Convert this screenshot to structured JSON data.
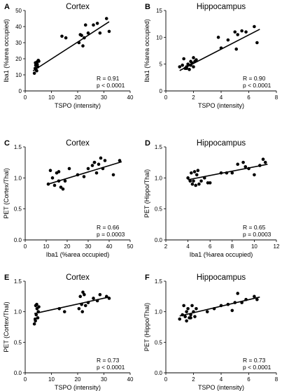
{
  "chart_data": [
    {
      "panel": "A",
      "type": "scatter",
      "title": "Cortex",
      "xlabel": "TSPO (intensity)",
      "ylabel": "Iba1 (%area occupied)",
      "xlim": [
        0,
        40
      ],
      "ylim": [
        0,
        50
      ],
      "xticks": [
        0,
        10,
        20,
        30,
        40
      ],
      "yticks": [
        0,
        10,
        20,
        30,
        40,
        50
      ],
      "stat_r": "R = 0.91",
      "stat_p": "p < 0.0001",
      "fit": [
        [
          3,
          12.5
        ],
        [
          32,
          43
        ]
      ],
      "x": [
        3.5,
        3.8,
        4.0,
        4.2,
        4.5,
        4.8,
        5.0,
        3.9,
        4.4,
        4.6,
        5.2,
        14.0,
        15.5,
        20.5,
        21.0,
        21.5,
        22.0,
        22.5,
        23.0,
        24.0,
        26.0,
        27.5,
        28.5,
        31.0,
        32.0
      ],
      "y": [
        11.0,
        14.0,
        16.0,
        13.0,
        18.0,
        15.0,
        19.0,
        17.5,
        12.5,
        16.5,
        18.5,
        34.0,
        33.0,
        30.0,
        35.0,
        34.5,
        28.0,
        33.0,
        41.0,
        36.0,
        41.0,
        42.0,
        36.0,
        45.0,
        37.0
      ]
    },
    {
      "panel": "B",
      "type": "scatter",
      "title": "Hippocampus",
      "xlabel": "TSPO (intensity)",
      "ylabel": "Iba1 (%area occupied)",
      "xlim": [
        0,
        8
      ],
      "ylim": [
        0,
        15
      ],
      "xticks": [
        0,
        2,
        4,
        6,
        8
      ],
      "yticks": [
        0,
        5,
        10,
        15
      ],
      "stat_r": "R = 0.90",
      "stat_p": "p < 0.0001",
      "fit": [
        [
          1.0,
          3.8
        ],
        [
          6.8,
          11.5
        ]
      ],
      "x": [
        1.0,
        1.2,
        1.3,
        1.4,
        1.5,
        1.6,
        1.7,
        1.8,
        1.9,
        2.0,
        2.1,
        2.2,
        1.5,
        1.8,
        2.0,
        3.8,
        4.0,
        4.5,
        5.0,
        5.2,
        5.5,
        5.8,
        6.4,
        6.6,
        5.1
      ],
      "y": [
        4.5,
        4.8,
        6.0,
        4.2,
        4.5,
        5.0,
        4.0,
        4.8,
        5.2,
        6.2,
        5.5,
        5.8,
        4.2,
        5.5,
        4.5,
        10.0,
        8.0,
        9.5,
        11.0,
        10.5,
        11.2,
        11.0,
        12.0,
        9.0,
        7.8
      ]
    },
    {
      "panel": "C",
      "type": "scatter",
      "title": "Cortex",
      "xlabel": "Iba1 (%area occupied)",
      "ylabel": "PET (Cortex/Thal)",
      "xlim": [
        0,
        50
      ],
      "ylim": [
        0,
        1.5
      ],
      "xticks": [
        0,
        10,
        20,
        30,
        40,
        50
      ],
      "yticks": [
        0,
        0.5,
        1.0,
        1.5
      ],
      "stat_r": "R = 0.66",
      "stat_p": "p = 0.0003",
      "fit": [
        [
          11,
          0.9
        ],
        [
          46,
          1.26
        ]
      ],
      "x": [
        11.0,
        12.0,
        13.0,
        14.0,
        15.0,
        16.0,
        17.0,
        18.0,
        19.0,
        21.0,
        25.0,
        28.0,
        30.0,
        32.0,
        33.0,
        34.0,
        35.0,
        36.0,
        37.0,
        38.0,
        42.0,
        45.0,
        16.0,
        33.0
      ],
      "y": [
        0.9,
        1.12,
        1.0,
        0.88,
        1.08,
        1.1,
        0.85,
        0.82,
        0.95,
        1.15,
        1.05,
        1.02,
        1.15,
        1.2,
        1.25,
        1.08,
        1.22,
        1.32,
        1.15,
        1.28,
        1.05,
        1.28,
        0.95,
        1.25
      ]
    },
    {
      "panel": "D",
      "type": "scatter",
      "title": "Hippocampus",
      "xlabel": "Iba1 (%area occupied)",
      "ylabel": "PET (Hippo/Thal)",
      "xlim": [
        2,
        12
      ],
      "ylim": [
        0,
        1.5
      ],
      "xticks": [
        2,
        4,
        6,
        8,
        10,
        12
      ],
      "yticks": [
        0,
        0.5,
        1.0,
        1.5
      ],
      "stat_r": "R = 0.65",
      "stat_p": "p = 0.0003",
      "fit": [
        [
          4.0,
          0.97
        ],
        [
          11.2,
          1.22
        ]
      ],
      "x": [
        4.0,
        4.2,
        4.4,
        4.5,
        4.6,
        4.7,
        4.8,
        5.0,
        5.2,
        5.5,
        5.8,
        6.0,
        4.3,
        4.9,
        7.5,
        8.0,
        8.5,
        9.0,
        9.5,
        10.0,
        10.5,
        10.8,
        11.0,
        9.2,
        7.0
      ],
      "y": [
        1.0,
        0.95,
        0.9,
        0.95,
        1.1,
        0.88,
        1.05,
        0.9,
        0.95,
        1.0,
        0.92,
        0.92,
        1.08,
        1.12,
        1.08,
        1.08,
        1.22,
        1.25,
        1.15,
        1.05,
        1.2,
        1.3,
        1.25,
        1.18,
        1.08
      ]
    },
    {
      "panel": "E",
      "type": "scatter",
      "title": "Cortex",
      "xlabel": "TSPO (intensity)",
      "ylabel": "PET (Cortex/Thal)",
      "xlim": [
        0,
        40
      ],
      "ylim": [
        0,
        1.5
      ],
      "xticks": [
        0,
        10,
        20,
        30,
        40
      ],
      "yticks": [
        0,
        0.5,
        1.0,
        1.5
      ],
      "stat_r": "R = 0.73",
      "stat_p": "p < 0.0001",
      "fit": [
        [
          3.5,
          0.97
        ],
        [
          32,
          1.24
        ]
      ],
      "x": [
        3.5,
        3.8,
        4.0,
        4.2,
        4.5,
        4.8,
        5.0,
        3.9,
        4.4,
        5.2,
        13.0,
        15.0,
        20.5,
        21.0,
        21.5,
        22.0,
        22.5,
        23.0,
        24.0,
        26.0,
        27.5,
        28.5,
        31.0,
        32.0,
        21.8
      ],
      "y": [
        0.8,
        0.88,
        1.1,
        0.95,
        1.05,
        0.9,
        1.0,
        0.85,
        1.12,
        1.08,
        1.05,
        1.0,
        1.05,
        1.25,
        1.12,
        1.32,
        1.28,
        1.1,
        1.15,
        1.22,
        1.18,
        1.28,
        1.25,
        1.22,
        1.0
      ]
    },
    {
      "panel": "F",
      "type": "scatter",
      "title": "Hippocampus",
      "xlabel": "TSPO (intensity)",
      "ylabel": "PET (Hippo/Thal)",
      "xlim": [
        0,
        8
      ],
      "ylim": [
        0,
        1.5
      ],
      "xticks": [
        0,
        2,
        4,
        6,
        8
      ],
      "yticks": [
        0,
        0.5,
        1.0,
        1.5
      ],
      "stat_r": "R = 0.73",
      "stat_p": "p < 0.0001",
      "fit": [
        [
          1.0,
          0.93
        ],
        [
          6.8,
          1.24
        ]
      ],
      "x": [
        1.0,
        1.2,
        1.3,
        1.4,
        1.5,
        1.6,
        1.7,
        1.8,
        1.9,
        2.0,
        2.1,
        2.2,
        1.5,
        1.8,
        3.5,
        4.0,
        4.5,
        5.0,
        5.2,
        5.5,
        5.8,
        6.4,
        6.6,
        3.0,
        4.8
      ],
      "y": [
        0.88,
        0.95,
        1.1,
        0.92,
        1.0,
        1.05,
        0.9,
        0.95,
        1.1,
        1.0,
        0.92,
        1.05,
        0.85,
        0.9,
        1.05,
        1.1,
        1.12,
        1.15,
        1.3,
        1.15,
        1.2,
        1.25,
        1.2,
        1.0,
        1.02
      ]
    }
  ]
}
